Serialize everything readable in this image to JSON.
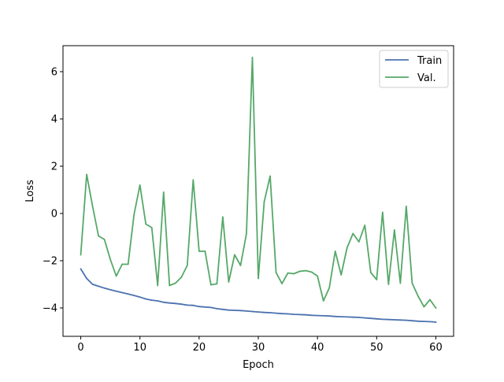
{
  "chart_data": {
    "type": "line",
    "title": "",
    "xlabel": "Epoch",
    "ylabel": "Loss",
    "xlim": [
      -3,
      63
    ],
    "ylim": [
      -5.2,
      7.1
    ],
    "xticks": [
      0,
      10,
      20,
      30,
      40,
      50,
      60
    ],
    "yticks": [
      -4,
      -2,
      0,
      2,
      4,
      6
    ],
    "grid": false,
    "legend_position": "top-right",
    "x": [
      0,
      1,
      2,
      3,
      4,
      5,
      6,
      7,
      8,
      9,
      10,
      11,
      12,
      13,
      14,
      15,
      16,
      17,
      18,
      19,
      20,
      21,
      22,
      23,
      24,
      25,
      26,
      27,
      28,
      29,
      30,
      31,
      32,
      33,
      34,
      35,
      36,
      37,
      38,
      39,
      40,
      41,
      42,
      43,
      44,
      45,
      46,
      47,
      48,
      49,
      50,
      51,
      52,
      53,
      54,
      55,
      56,
      57,
      58,
      59,
      60
    ],
    "series": [
      {
        "name": "Train",
        "color": "#4c72b0",
        "values": [
          -2.35,
          -2.75,
          -3.0,
          -3.08,
          -3.16,
          -3.23,
          -3.29,
          -3.35,
          -3.41,
          -3.47,
          -3.54,
          -3.62,
          -3.67,
          -3.7,
          -3.76,
          -3.79,
          -3.81,
          -3.84,
          -3.88,
          -3.89,
          -3.94,
          -3.96,
          -3.98,
          -4.03,
          -4.06,
          -4.09,
          -4.1,
          -4.11,
          -4.13,
          -4.15,
          -4.17,
          -4.19,
          -4.2,
          -4.22,
          -4.24,
          -4.25,
          -4.27,
          -4.28,
          -4.29,
          -4.31,
          -4.32,
          -4.33,
          -4.34,
          -4.36,
          -4.37,
          -4.38,
          -4.39,
          -4.4,
          -4.42,
          -4.44,
          -4.46,
          -4.48,
          -4.49,
          -4.5,
          -4.51,
          -4.52,
          -4.54,
          -4.56,
          -4.57,
          -4.58,
          -4.6
        ]
      },
      {
        "name": "Val.",
        "color": "#55a868",
        "values": [
          -1.75,
          1.65,
          0.3,
          -0.95,
          -1.1,
          -1.95,
          -2.65,
          -2.15,
          -2.15,
          -0.05,
          1.2,
          -0.45,
          -0.6,
          -3.05,
          0.9,
          -3.05,
          -2.95,
          -2.7,
          -2.2,
          1.42,
          -1.6,
          -1.6,
          -3.02,
          -2.98,
          -0.15,
          -2.9,
          -1.75,
          -2.2,
          -0.85,
          6.6,
          -2.75,
          0.5,
          1.58,
          -2.5,
          -2.97,
          -2.52,
          -2.55,
          -2.45,
          -2.42,
          -2.48,
          -2.65,
          -3.7,
          -3.15,
          -1.6,
          -2.6,
          -1.45,
          -0.85,
          -1.2,
          -0.5,
          -2.5,
          -2.8,
          0.05,
          -3.0,
          -0.7,
          -2.95,
          0.3,
          -2.95,
          -3.5,
          -3.95,
          -3.65,
          -4.0
        ]
      }
    ]
  }
}
